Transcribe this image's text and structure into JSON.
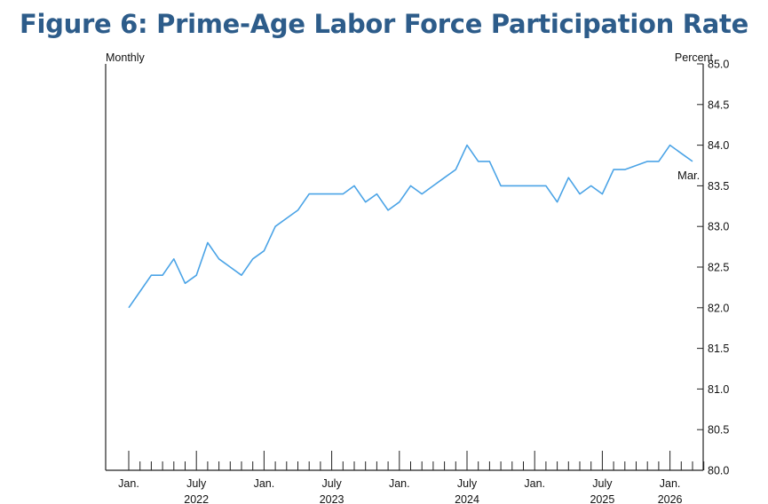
{
  "chart_data": {
    "type": "line",
    "title": "Figure 6: Prime-Age Labor Force Participation Rate",
    "left_label": "Monthly",
    "right_label": "Percent",
    "ylim": [
      80.0,
      85.0
    ],
    "y_ticks": [
      "80.0",
      "80.5",
      "81.0",
      "81.5",
      "82.0",
      "82.5",
      "83.0",
      "83.5",
      "84.0",
      "84.5",
      "85.0"
    ],
    "grid": false,
    "x_ticks": [
      {
        "month_index": 0,
        "label": "Jan."
      },
      {
        "month_index": 6,
        "label": "July"
      },
      {
        "month_index": 12,
        "label": "Jan."
      },
      {
        "month_index": 18,
        "label": "July"
      },
      {
        "month_index": 24,
        "label": "Jan."
      },
      {
        "month_index": 30,
        "label": "July"
      },
      {
        "month_index": 36,
        "label": "Jan."
      },
      {
        "month_index": 42,
        "label": "July"
      },
      {
        "month_index": 48,
        "label": "Jan."
      }
    ],
    "year_labels": [
      {
        "month_index": 6,
        "label": "2022"
      },
      {
        "month_index": 18,
        "label": "2023"
      },
      {
        "month_index": 30,
        "label": "2024"
      },
      {
        "month_index": 42,
        "label": "2025"
      },
      {
        "month_index": 48,
        "label": "2026"
      }
    ],
    "n_months": 51,
    "series": [
      {
        "color": "#4aa3e6",
        "x": [
          "2022-01",
          "2022-02",
          "2022-03",
          "2022-04",
          "2022-05",
          "2022-06",
          "2022-07",
          "2022-08",
          "2022-09",
          "2022-10",
          "2022-11",
          "2022-12",
          "2023-01",
          "2023-02",
          "2023-03",
          "2023-04",
          "2023-05",
          "2023-06",
          "2023-07",
          "2023-08",
          "2023-09",
          "2023-10",
          "2023-11",
          "2023-12",
          "2024-01",
          "2024-02",
          "2024-03",
          "2024-04",
          "2024-05",
          "2024-06",
          "2024-07",
          "2024-08",
          "2024-09",
          "2024-10",
          "2024-11",
          "2024-12",
          "2025-01",
          "2025-02",
          "2025-03",
          "2025-04",
          "2025-05",
          "2025-06",
          "2025-07",
          "2025-08",
          "2025-09",
          "2025-10",
          "2025-11",
          "2025-12",
          "2026-01",
          "2026-02",
          "2026-03"
        ],
        "values": [
          82.0,
          82.2,
          82.4,
          82.4,
          82.6,
          82.3,
          82.4,
          82.8,
          82.6,
          82.5,
          82.4,
          82.6,
          82.7,
          83.0,
          83.1,
          83.2,
          83.4,
          83.4,
          83.4,
          83.4,
          83.5,
          83.3,
          83.4,
          83.2,
          83.3,
          83.5,
          83.4,
          83.5,
          83.6,
          83.7,
          84.0,
          83.8,
          83.8,
          83.5,
          83.5,
          83.5,
          83.5,
          83.5,
          83.3,
          83.6,
          83.4,
          83.5,
          83.4,
          83.7,
          83.7,
          83.75,
          83.8,
          83.8,
          84.0,
          83.9,
          83.8
        ]
      }
    ],
    "annotations": [
      {
        "label": "Mar.",
        "month_index": 50
      }
    ]
  }
}
